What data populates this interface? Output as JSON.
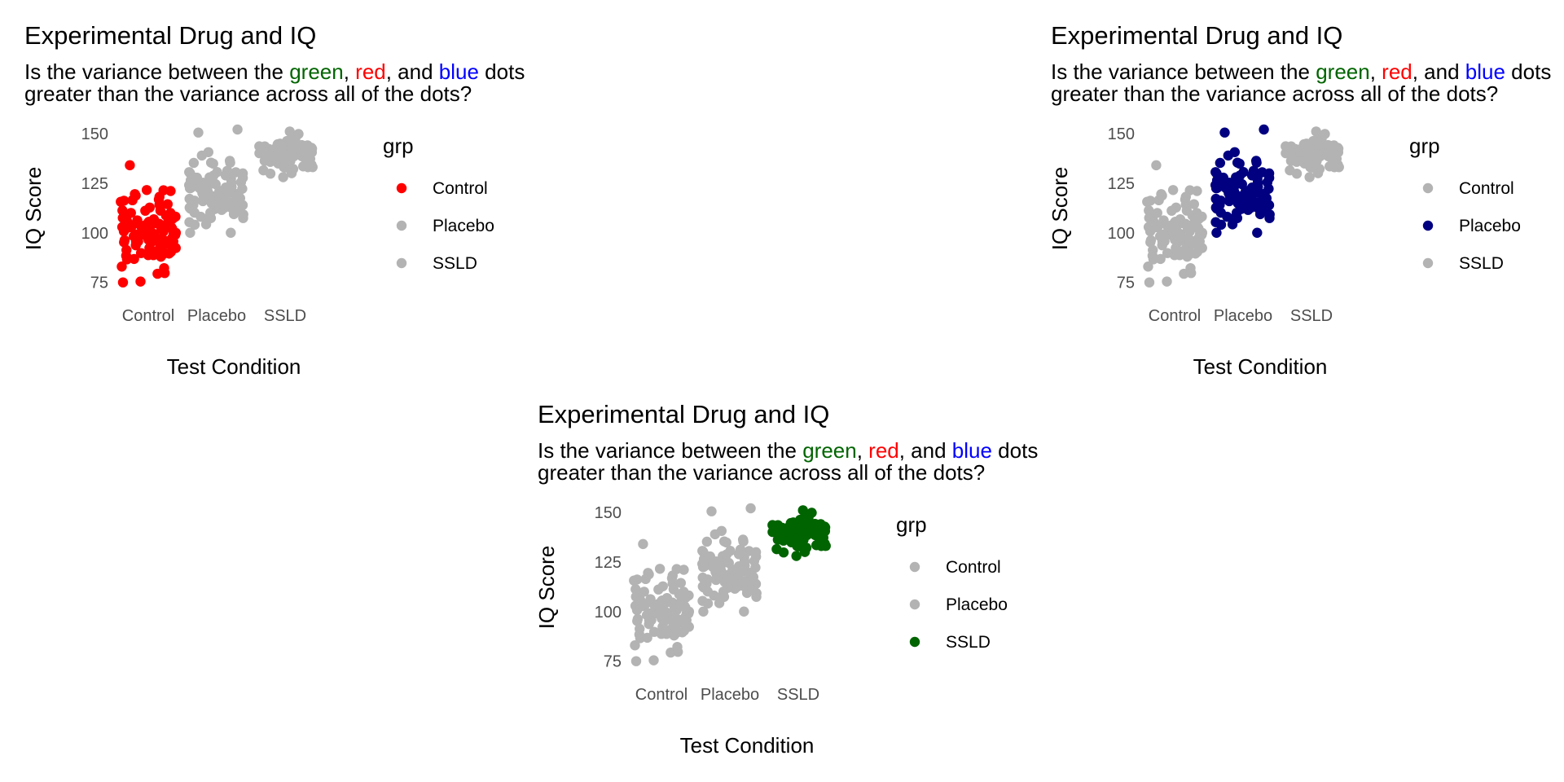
{
  "colors": {
    "highlight": {
      "green": "#006400",
      "red": "#ff0000",
      "blue": "#0000ff"
    },
    "grey": "#b3b3b3",
    "control": "#ff0000",
    "placebo": "#000080",
    "ssld": "#006400"
  },
  "common": {
    "title": "Experimental Drug and IQ",
    "subtitle_parts": [
      "Is the variance between the ",
      "green",
      ", ",
      "red",
      ", and ",
      "blue",
      " dots"
    ],
    "subtitle_line2": "greater than the variance across all of the dots?",
    "xlabel": "Test Condition",
    "ylabel": "IQ Score",
    "legend_title": "grp",
    "categories": [
      "Control",
      "Placebo",
      "SSLD"
    ],
    "yticks": [
      75,
      100,
      125,
      150
    ]
  },
  "chart_data": [
    {
      "type": "scatter",
      "title": "Experimental Drug and IQ",
      "xlabel": "Test Condition",
      "ylabel": "IQ Score",
      "ylim": [
        72,
        152
      ],
      "legend_title": "grp",
      "legend_position": "right",
      "highlight": "Control",
      "series": [
        {
          "name": "Control",
          "color": "#ff0000",
          "center": 100,
          "min": 75,
          "max": 134
        },
        {
          "name": "Placebo",
          "color": "#b3b3b3",
          "center": 120,
          "min": 100,
          "max": 152
        },
        {
          "name": "SSLD",
          "color": "#b3b3b3",
          "center": 140,
          "min": 128,
          "max": 151
        }
      ]
    },
    {
      "type": "scatter",
      "title": "Experimental Drug and IQ",
      "xlabel": "Test Condition",
      "ylabel": "IQ Score",
      "ylim": [
        72,
        152
      ],
      "legend_title": "grp",
      "legend_position": "right",
      "highlight": "Placebo",
      "series": [
        {
          "name": "Control",
          "color": "#b3b3b3",
          "center": 100,
          "min": 75,
          "max": 134
        },
        {
          "name": "Placebo",
          "color": "#000080",
          "center": 120,
          "min": 100,
          "max": 152
        },
        {
          "name": "SSLD",
          "color": "#b3b3b3",
          "center": 140,
          "min": 128,
          "max": 151
        }
      ]
    },
    {
      "type": "scatter",
      "title": "Experimental Drug and IQ",
      "xlabel": "Test Condition",
      "ylabel": "IQ Score",
      "ylim": [
        72,
        152
      ],
      "legend_title": "grp",
      "legend_position": "right",
      "highlight": "SSLD",
      "series": [
        {
          "name": "Control",
          "color": "#b3b3b3",
          "center": 100,
          "min": 75,
          "max": 134
        },
        {
          "name": "Placebo",
          "color": "#b3b3b3",
          "center": 120,
          "min": 100,
          "max": 152
        },
        {
          "name": "SSLD",
          "color": "#006400",
          "center": 140,
          "min": 128,
          "max": 151
        }
      ]
    }
  ]
}
